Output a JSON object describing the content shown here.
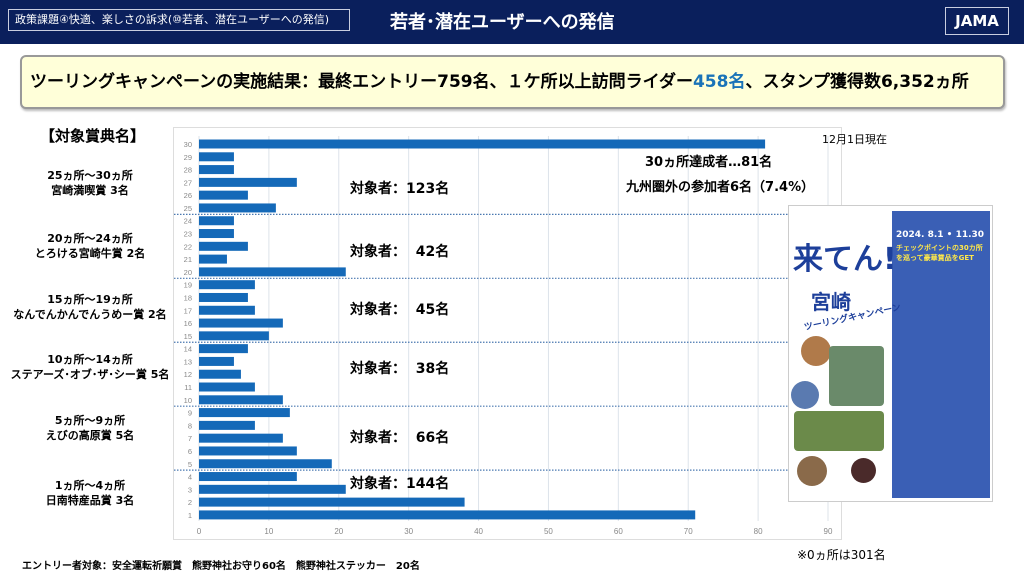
{
  "header": {
    "breadcrumb": "政策課題④快適、楽しさの訴求(⑩若者、潜在ユーザーへの発信)",
    "title": "若者･潜在ユーザーへの発信",
    "logo": "JAMA"
  },
  "banner": {
    "prefix": "ツーリングキャンペーンの実施結果：最終エントリー759名、１ケ所以上訪問ライダー",
    "highlight": "458名",
    "suffix": "、スタンプ獲得数6,352ヵ所",
    "highlight_color": "#1a73b8"
  },
  "awards": {
    "title": "【対象賞典名】",
    "items": [
      {
        "range": "25ヵ所～30ヵ所",
        "prize": "宮崎満喫賞  3名"
      },
      {
        "range": "20ヵ所～24ヵ所",
        "prize": "とろける宮崎牛賞  2名"
      },
      {
        "range": "15ヵ所～19ヵ所",
        "prize": "なんでんかんでんうめー賞  2名"
      },
      {
        "range": "10ヵ所～14ヵ所",
        "prize": "ステアーズ･オブ･ザ･シー賞  5名"
      },
      {
        "range": "5ヵ所～9ヵ所",
        "prize": "えびの高原賞  5名"
      },
      {
        "range": "1ヵ所～4ヵ所",
        "prize": "日南特産品賞  3名"
      }
    ]
  },
  "chart_data": {
    "type": "bar",
    "orientation": "horizontal",
    "categories": [
      30,
      29,
      28,
      27,
      26,
      25,
      24,
      23,
      22,
      21,
      20,
      19,
      18,
      17,
      16,
      15,
      14,
      13,
      12,
      11,
      10,
      9,
      8,
      7,
      6,
      5,
      4,
      3,
      2,
      1
    ],
    "values": [
      81,
      5,
      5,
      14,
      7,
      11,
      5,
      5,
      7,
      4,
      21,
      8,
      7,
      8,
      12,
      10,
      7,
      5,
      6,
      8,
      12,
      13,
      8,
      12,
      14,
      19,
      14,
      21,
      38,
      71
    ],
    "xlim": [
      0,
      90
    ],
    "xticks": [
      0,
      10,
      20,
      30,
      40,
      50,
      60,
      70,
      80,
      90
    ],
    "grid": true,
    "bar_color": "#1469b8",
    "groups": [
      "対象者：123名",
      "対象者：  42名",
      "対象者：  45名",
      "対象者：  38名",
      "対象者：  66名",
      "対象者：144名"
    ],
    "annotations": [
      "30ヵ所達成者…81名",
      "九州圏外の参加者6名（7.4%）"
    ],
    "as_of": "12月1日現在"
  },
  "notes": {
    "zero": "※0ヵ所は301名",
    "footer": "エントリー者対象：安全運転祈願賞　熊野神社お守り60名　熊野神社ステッカー　20名"
  },
  "poster": {
    "big": "来てん!",
    "sub": "宮崎",
    "tour": "ツーリングキャンペーン",
    "dates": "2024. 8.1 • 11.30",
    "yellow": "チェックポイントの30カ所を巡って豪華賞品をGET"
  }
}
